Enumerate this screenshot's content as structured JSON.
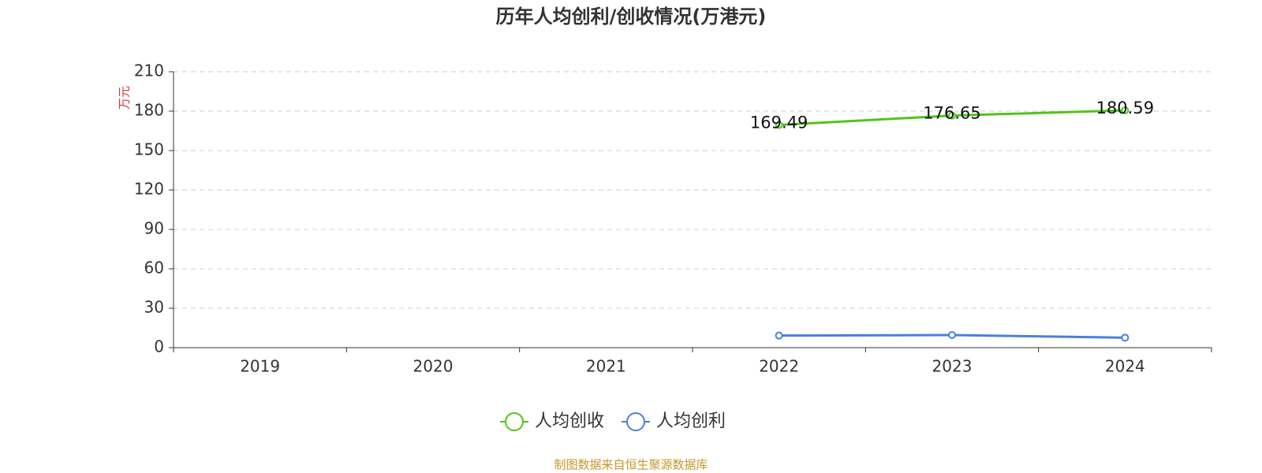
{
  "chart_data": {
    "type": "line",
    "title": "历年人均创利/创收情况(万港元)",
    "y_axis_label": "万元",
    "categories": [
      "2019",
      "2020",
      "2021",
      "2022",
      "2023",
      "2024"
    ],
    "series": [
      {
        "name": "人均创收",
        "color": "#52c41a",
        "values": [
          null,
          null,
          null,
          169.49,
          176.65,
          180.59
        ]
      },
      {
        "name": "人均创利",
        "color": "#4a7fe0",
        "values": [
          null,
          null,
          null,
          9.2,
          9.6,
          7.6
        ]
      }
    ],
    "ylim": [
      0,
      210
    ],
    "yticks": [
      0,
      30,
      60,
      90,
      120,
      150,
      180,
      210
    ],
    "grid": true,
    "legend": "bottom",
    "footer": "制图数据来自恒生聚源数据库"
  }
}
